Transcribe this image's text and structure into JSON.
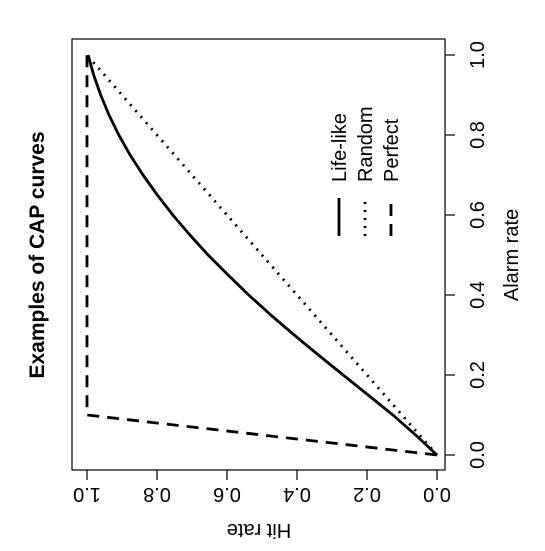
{
  "chart_data": {
    "type": "line",
    "title": "Examples of CAP curves",
    "xlabel": "Alarm rate",
    "ylabel": "Hit rate",
    "xlim": [
      0,
      1
    ],
    "ylim": [
      0,
      1
    ],
    "x_ticks": [
      "0.0",
      "0.2",
      "0.4",
      "0.6",
      "0.8",
      "1.0"
    ],
    "y_ticks": [
      "0.0",
      "0.2",
      "0.4",
      "0.6",
      "0.8",
      "1.0"
    ],
    "orientation": "rotated 90 degrees clockwise",
    "legend_position": "right",
    "series": [
      {
        "name": "Life-like",
        "line_style": "solid",
        "x": [
          0,
          0.05,
          0.1,
          0.15,
          0.2,
          0.25,
          0.3,
          0.35,
          0.4,
          0.45,
          0.5,
          0.55,
          0.6,
          0.65,
          0.7,
          0.75,
          0.8,
          0.85,
          0.9,
          0.95,
          1.0
        ],
        "y": [
          0,
          0.061,
          0.126,
          0.197,
          0.268,
          0.339,
          0.408,
          0.475,
          0.538,
          0.597,
          0.654,
          0.706,
          0.755,
          0.799,
          0.84,
          0.877,
          0.909,
          0.937,
          0.961,
          0.981,
          0.997
        ]
      },
      {
        "name": "Random",
        "line_style": "dotted",
        "x": [
          0,
          1
        ],
        "y": [
          0,
          1
        ]
      },
      {
        "name": "Perfect",
        "line_style": "dashed",
        "x": [
          0,
          0.1,
          1
        ],
        "y": [
          0,
          1,
          1
        ]
      }
    ]
  }
}
